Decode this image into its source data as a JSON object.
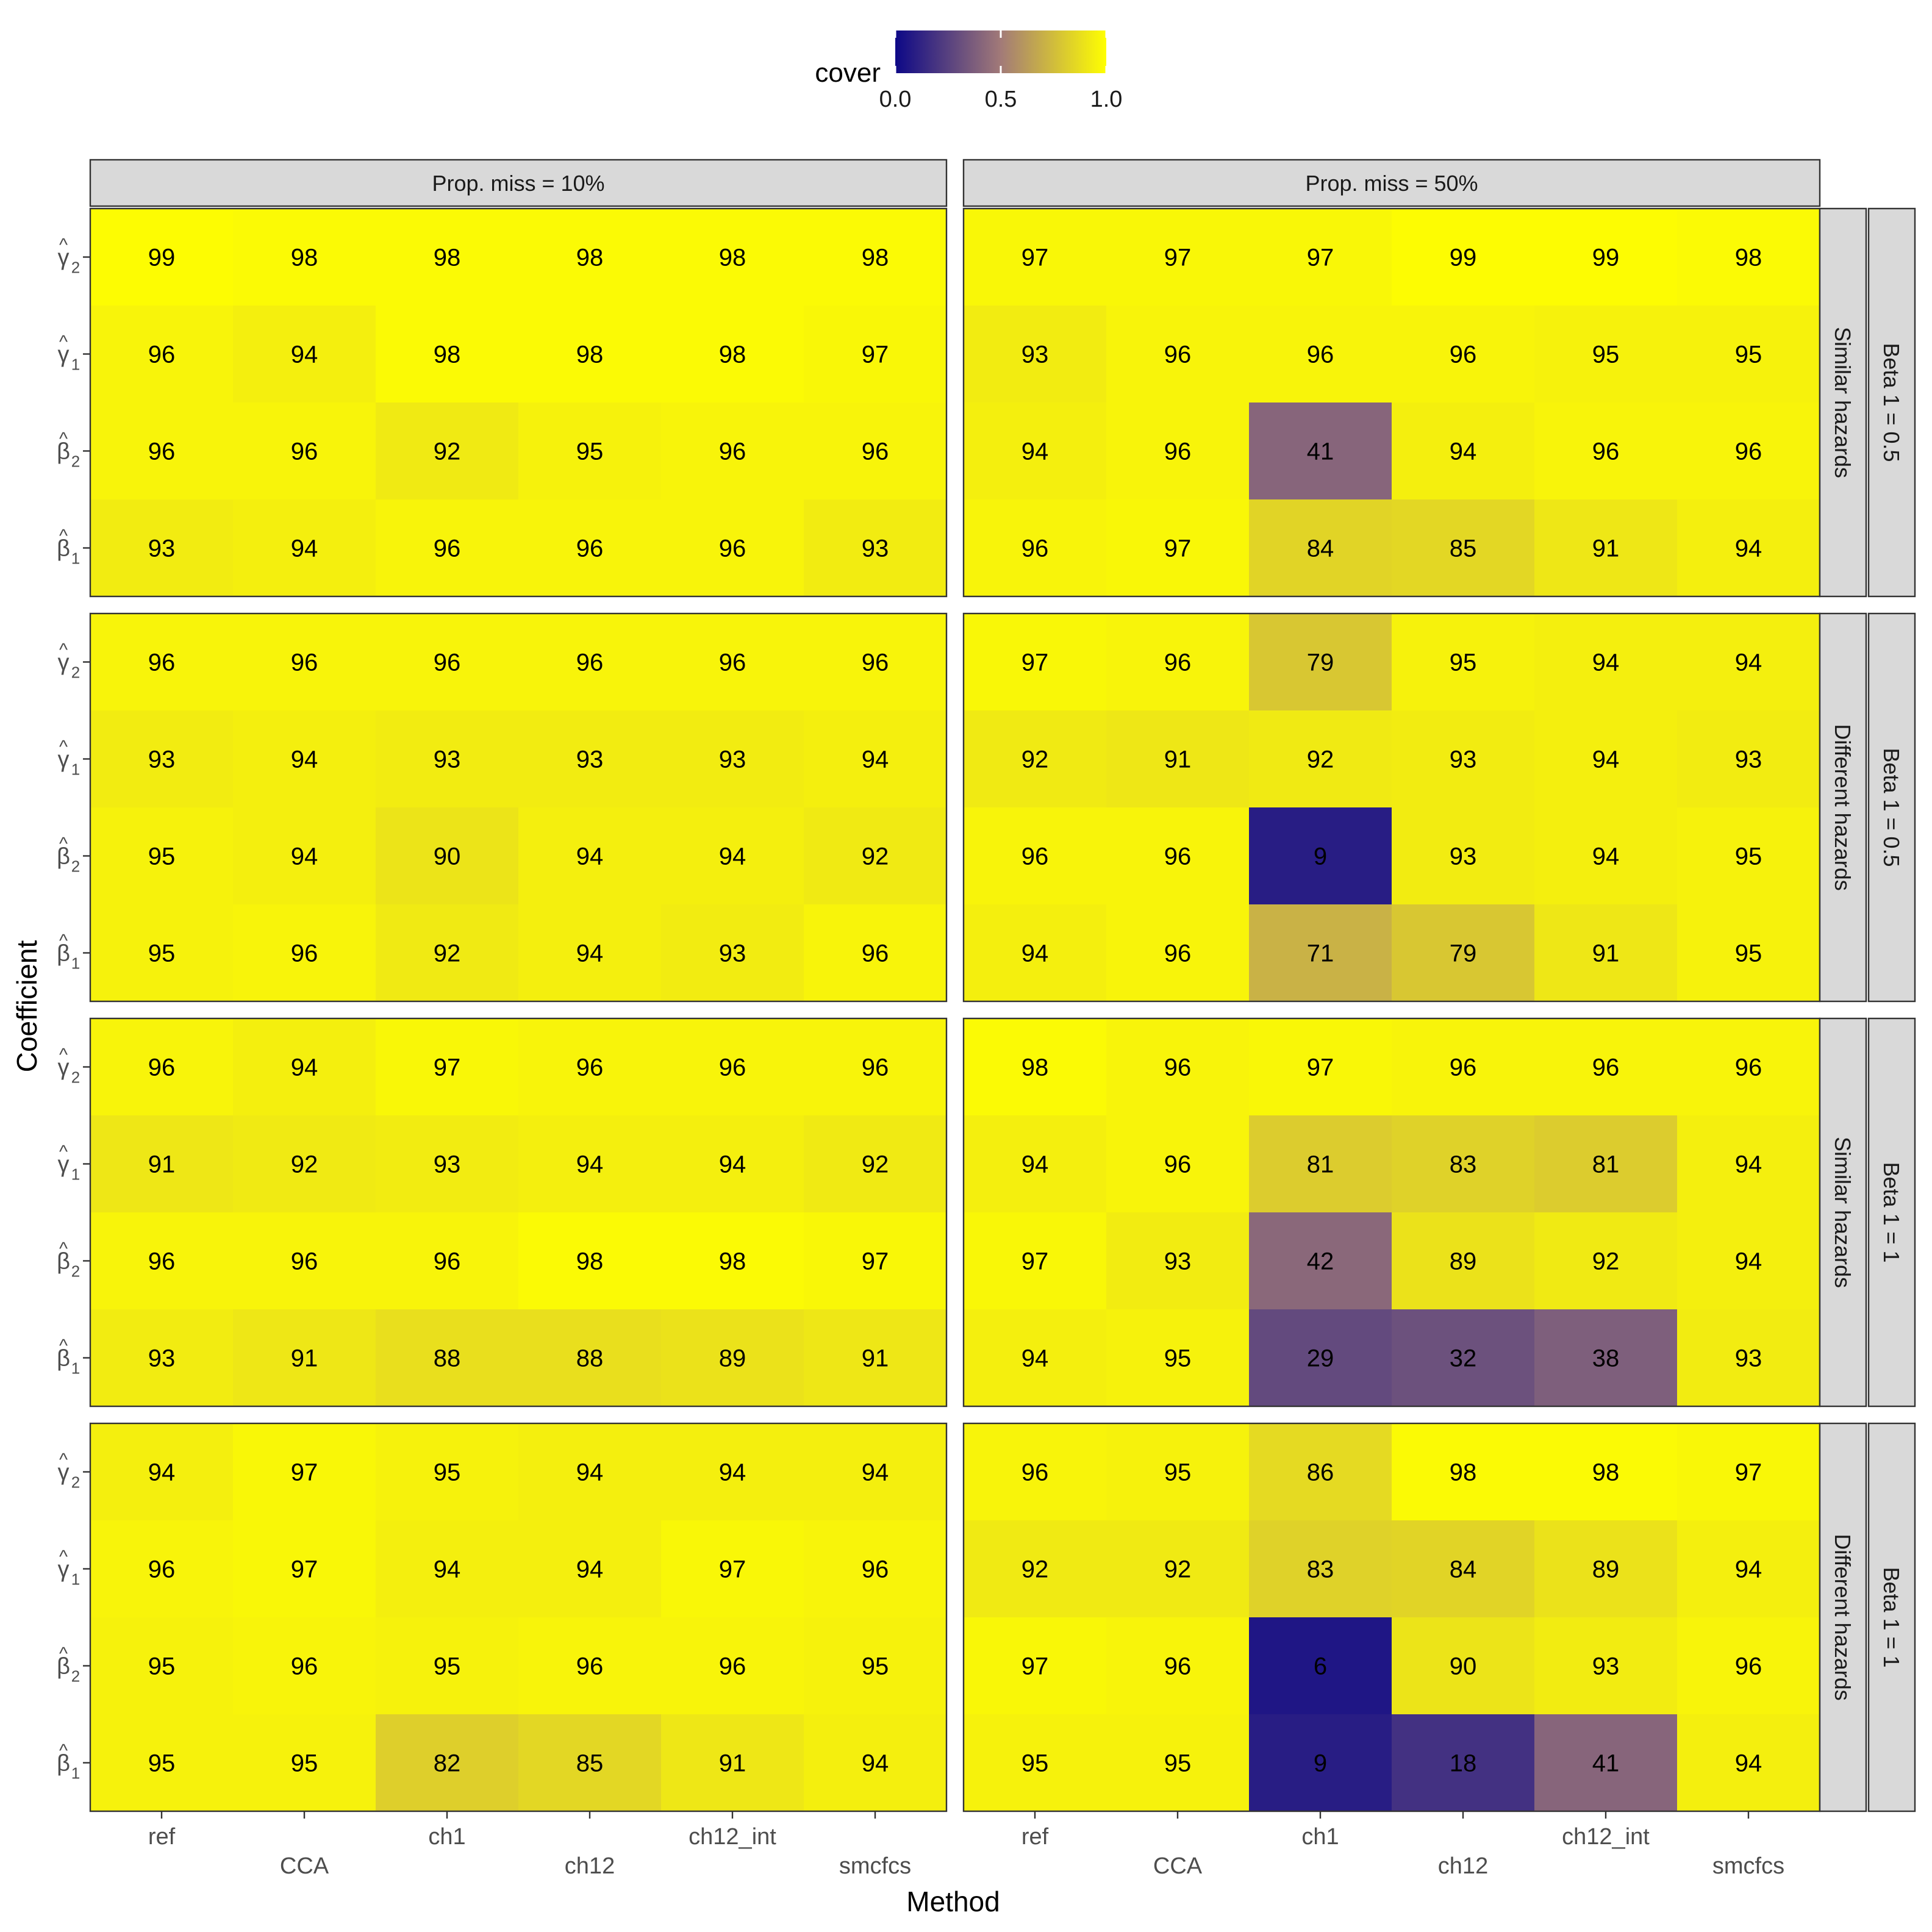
{
  "chart_data": {
    "type": "heatmap",
    "xlabel": "Method",
    "ylabel": "Coefficient",
    "legend": {
      "title": "cover",
      "position": "top",
      "range": [
        0,
        1
      ],
      "ticks": [
        "0.0",
        "0.5",
        "1.0"
      ],
      "colors": {
        "low": "#0D0887",
        "mid": "#A27A78",
        "high": "#FFFF00"
      }
    },
    "methods": [
      "ref",
      "CCA",
      "ch1",
      "ch12",
      "ch12_int",
      "smcfcs"
    ],
    "coefficients": [
      {
        "base": "γ",
        "sub": "2"
      },
      {
        "base": "γ",
        "sub": "1"
      },
      {
        "base": "β",
        "sub": "2"
      },
      {
        "base": "β",
        "sub": "1"
      }
    ],
    "col_strips": [
      "Prop. miss = 10%",
      "Prop. miss = 50%"
    ],
    "row_strips": [
      {
        "hazard": "Similar hazards",
        "beta": "Beta 1 = 0.5"
      },
      {
        "hazard": "Different hazards",
        "beta": "Beta 1 = 0.5"
      },
      {
        "hazard": "Similar hazards",
        "beta": "Beta 1 = 1"
      },
      {
        "hazard": "Different hazards",
        "beta": "Beta 1 = 1"
      }
    ],
    "panels": [
      [
        [
          [
            99,
            98,
            98,
            98,
            98,
            98
          ],
          [
            96,
            94,
            98,
            98,
            98,
            97
          ],
          [
            96,
            96,
            92,
            95,
            96,
            96
          ],
          [
            93,
            94,
            96,
            96,
            96,
            93
          ]
        ],
        [
          [
            97,
            97,
            97,
            99,
            99,
            98
          ],
          [
            93,
            96,
            96,
            96,
            95,
            95
          ],
          [
            94,
            96,
            41,
            94,
            96,
            96
          ],
          [
            96,
            97,
            84,
            85,
            91,
            94
          ]
        ]
      ],
      [
        [
          [
            96,
            96,
            96,
            96,
            96,
            96
          ],
          [
            93,
            94,
            93,
            93,
            93,
            94
          ],
          [
            95,
            94,
            90,
            94,
            94,
            92
          ],
          [
            95,
            96,
            92,
            94,
            93,
            96
          ]
        ],
        [
          [
            97,
            96,
            79,
            95,
            94,
            94
          ],
          [
            92,
            91,
            92,
            93,
            94,
            93
          ],
          [
            96,
            96,
            9,
            93,
            94,
            95
          ],
          [
            94,
            96,
            71,
            79,
            91,
            95
          ]
        ]
      ],
      [
        [
          [
            96,
            94,
            97,
            96,
            96,
            96
          ],
          [
            91,
            92,
            93,
            94,
            94,
            92
          ],
          [
            96,
            96,
            96,
            98,
            98,
            97
          ],
          [
            93,
            91,
            88,
            88,
            89,
            91
          ]
        ],
        [
          [
            98,
            96,
            97,
            96,
            96,
            96
          ],
          [
            94,
            96,
            81,
            83,
            81,
            94
          ],
          [
            97,
            93,
            42,
            89,
            92,
            94
          ],
          [
            94,
            95,
            29,
            32,
            38,
            93
          ]
        ]
      ],
      [
        [
          [
            94,
            97,
            95,
            94,
            94,
            94
          ],
          [
            96,
            97,
            94,
            94,
            97,
            96
          ],
          [
            95,
            96,
            95,
            96,
            96,
            95
          ],
          [
            95,
            95,
            82,
            85,
            91,
            94
          ]
        ],
        [
          [
            96,
            95,
            86,
            98,
            98,
            97
          ],
          [
            92,
            92,
            83,
            84,
            89,
            94
          ],
          [
            97,
            96,
            6,
            90,
            93,
            96
          ],
          [
            95,
            95,
            9,
            18,
            41,
            94
          ]
        ]
      ]
    ]
  }
}
